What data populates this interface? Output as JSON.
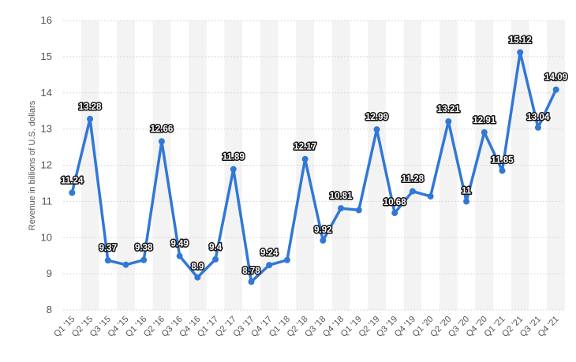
{
  "chart_data": {
    "type": "line",
    "title": "",
    "xlabel": "",
    "ylabel": "Revenue in billions of U.S. dollars",
    "ylim": [
      8,
      16
    ],
    "yticks": [
      "16",
      "15",
      "14",
      "13",
      "12",
      "11",
      "10",
      "9",
      "8"
    ],
    "grid": "horizontal",
    "line_color": "#3178d6",
    "categories": [
      "Q1 '15",
      "Q2 '15",
      "Q3 '15",
      "Q4 '15",
      "Q1 '16",
      "Q2 '16",
      "Q3 '16",
      "Q4 '16",
      "Q1 '17",
      "Q2 '17",
      "Q3 '17",
      "Q4 '17",
      "Q1 '18",
      "Q2 '18",
      "Q3 '18",
      "Q4 '18",
      "Q1 '19",
      "Q2 '19",
      "Q3 '19",
      "Q4 '19",
      "Q1 '20",
      "Q2 '20",
      "Q3 '20",
      "Q4 '20",
      "Q1 '21",
      "Q2 '21",
      "Q3 '21",
      "Q4 '21"
    ],
    "values": [
      11.24,
      13.28,
      9.37,
      9.25,
      9.38,
      12.66,
      9.49,
      8.9,
      9.4,
      11.89,
      8.78,
      9.24,
      9.38,
      12.17,
      9.92,
      10.81,
      10.76,
      12.99,
      10.68,
      11.28,
      11.14,
      13.21,
      11,
      12.91,
      11.85,
      15.12,
      13.04,
      14.09
    ],
    "data_labels": [
      "11.24",
      "13.28",
      "9.37",
      "",
      "9.38",
      "12.66",
      "9.49",
      "8.9",
      "9.4",
      "11.89",
      "8.78",
      "9.24",
      "",
      "12.17",
      "9.92",
      "10.81",
      "",
      "12.99",
      "10.68",
      "11.28",
      "",
      "13.21",
      "11",
      "12.91",
      "11.85",
      "15.12",
      "13.04",
      "14.09"
    ]
  }
}
